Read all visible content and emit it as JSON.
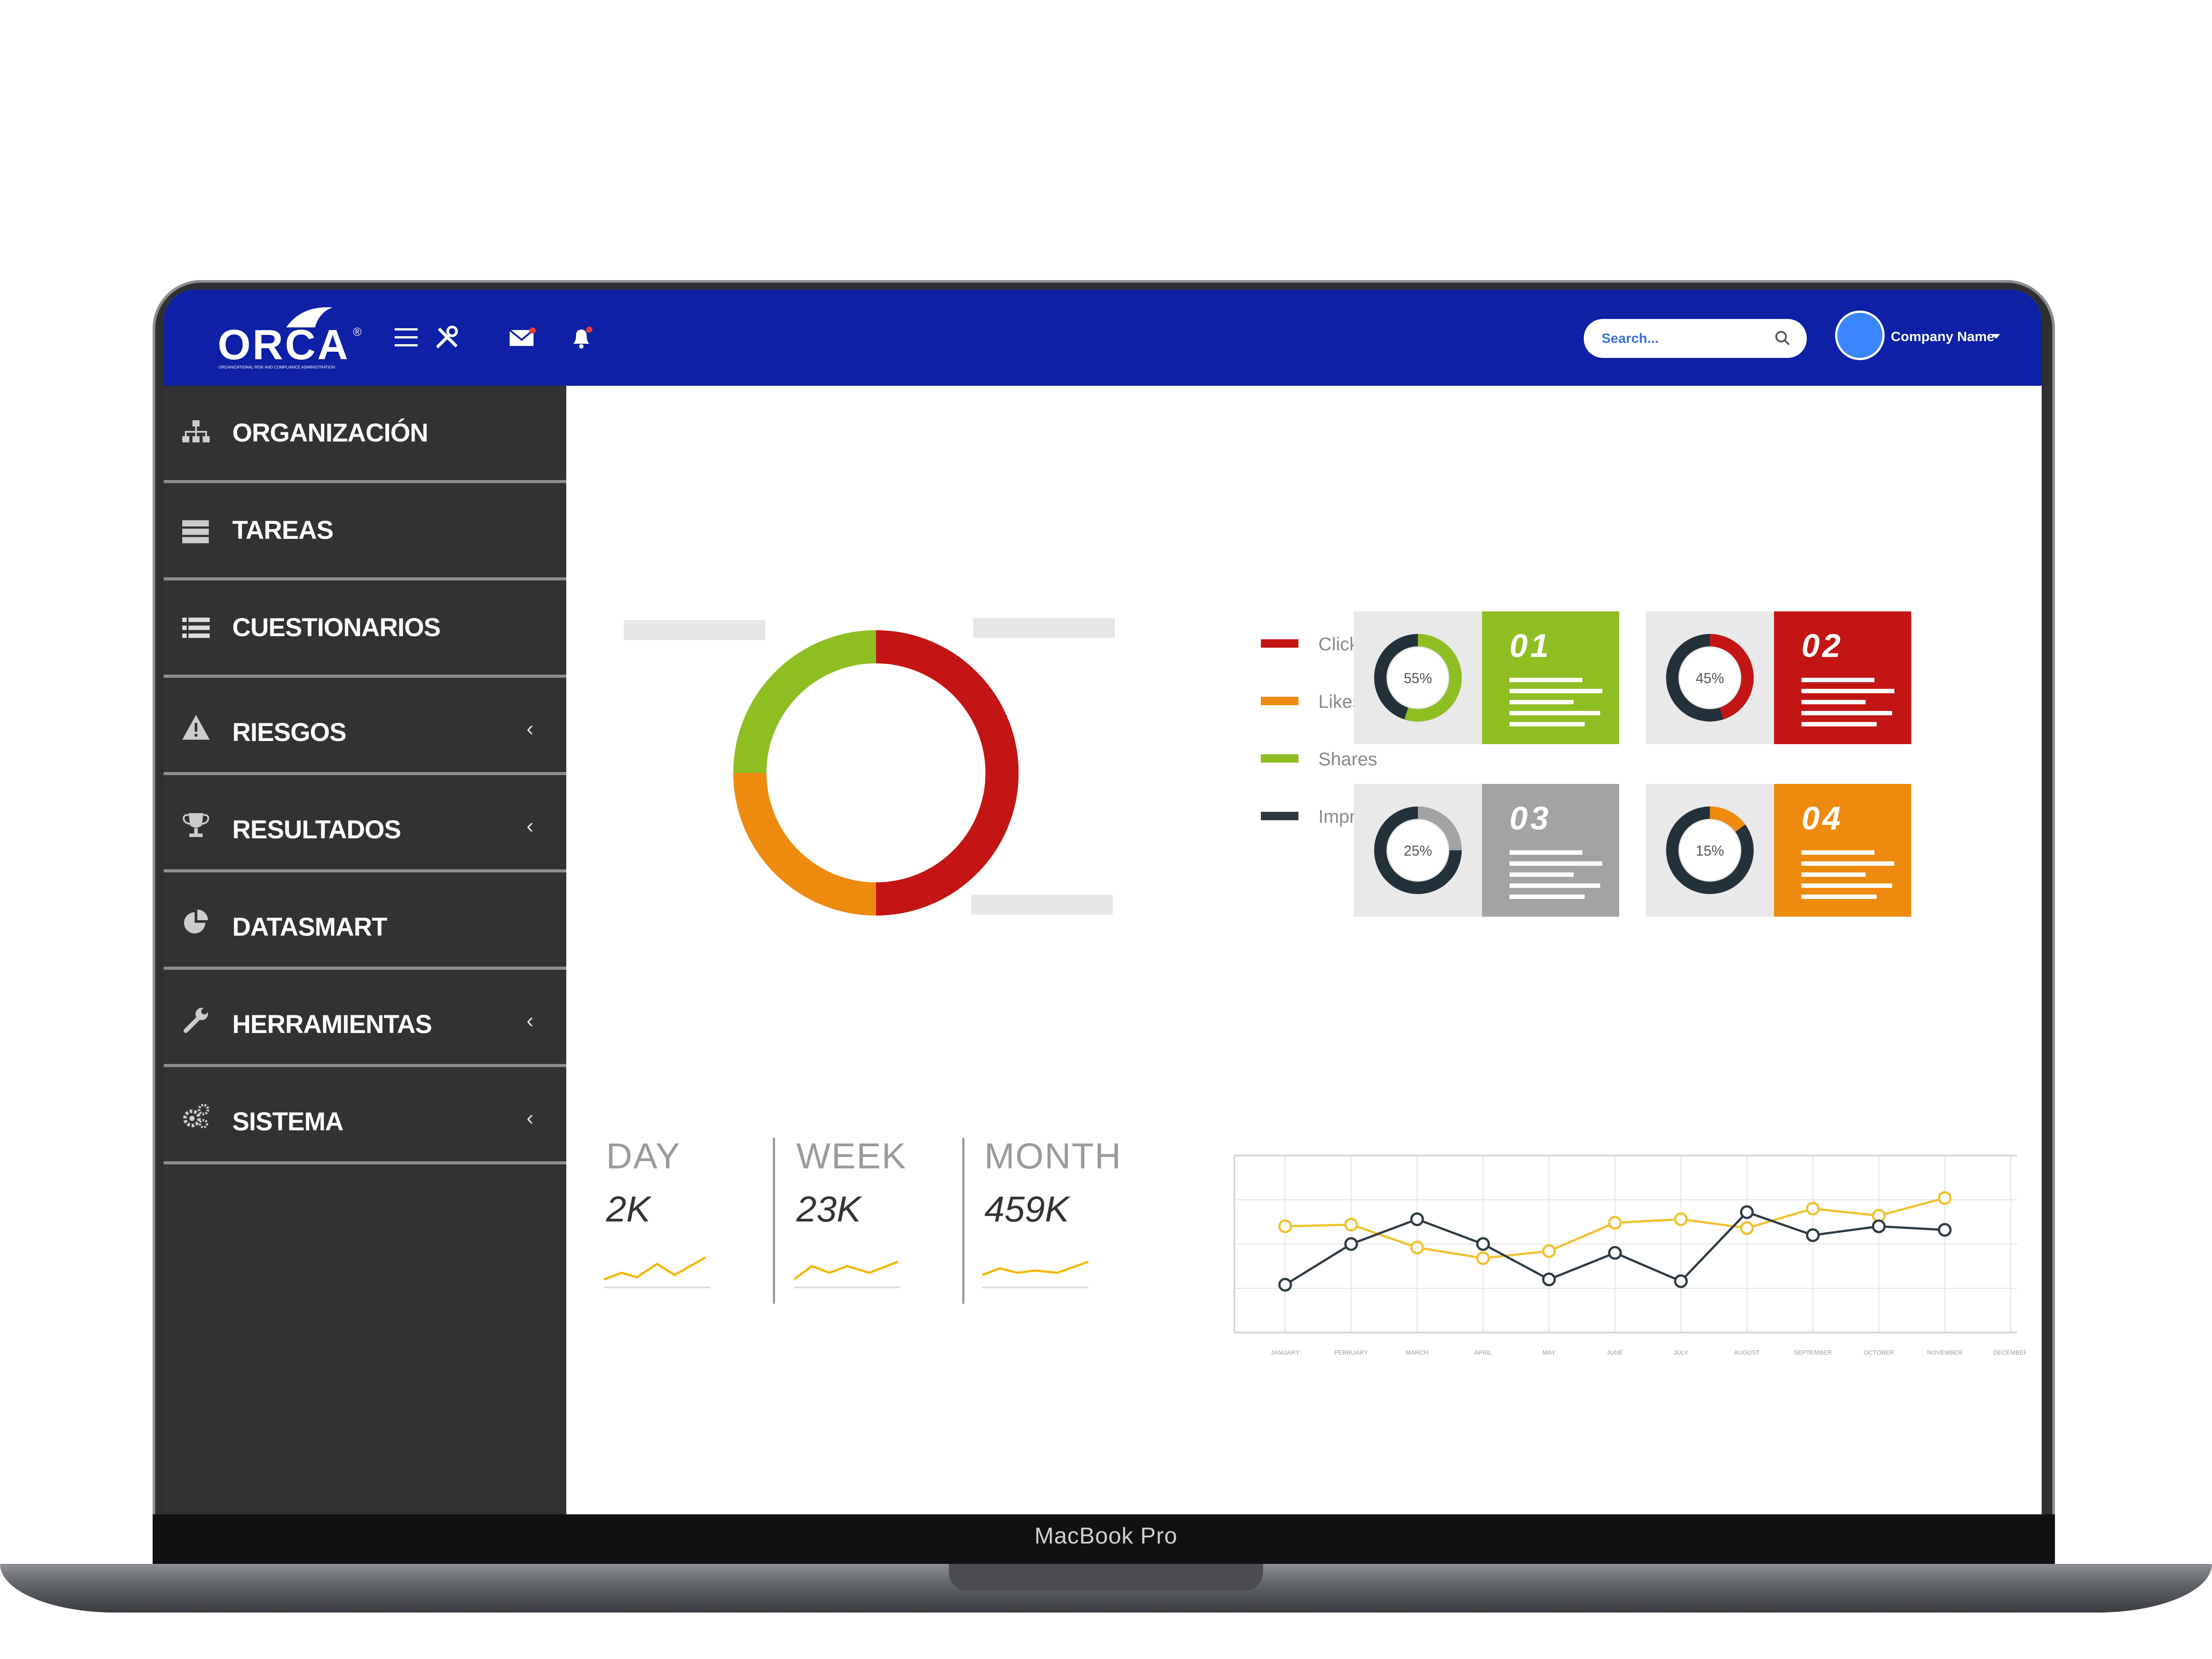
{
  "device": {
    "label": "MacBook Pro"
  },
  "header": {
    "logo_text": "ORCA",
    "logo_registered": "®",
    "logo_subtitle": "ORGANIZATIONAL RISK AND COMPLIANCE ADMINISTRATION",
    "search_placeholder": "Search...",
    "company_name": "Company Name",
    "colors": {
      "bar": "#0d20a6",
      "avatar": "#3a86ff"
    }
  },
  "sidebar": {
    "items": [
      {
        "label": "ORGANIZACIÓN",
        "icon": "sitemap-icon",
        "has_submenu": false
      },
      {
        "label": "TAREAS",
        "icon": "server-icon",
        "has_submenu": false
      },
      {
        "label": "CUESTIONARIOS",
        "icon": "list-icon",
        "has_submenu": false
      },
      {
        "label": "RIESGOS",
        "icon": "warning-icon",
        "has_submenu": true
      },
      {
        "label": "RESULTADOS",
        "icon": "trophy-icon",
        "has_submenu": true
      },
      {
        "label": "DATASMART",
        "icon": "pie-chart-icon",
        "has_submenu": false
      },
      {
        "label": "HERRAMIENTAS",
        "icon": "wrench-icon",
        "has_submenu": true
      },
      {
        "label": "SISTEMA",
        "icon": "gears-icon",
        "has_submenu": true
      }
    ],
    "chevron": "‹"
  },
  "legend": {
    "items": [
      {
        "label": "Clicks",
        "color": "#c41515"
      },
      {
        "label": "Likes",
        "color": "#ee8a0e"
      },
      {
        "label": "Shares",
        "color": "#8fbe23"
      },
      {
        "label": "Impressions",
        "color": "#2d3a42"
      }
    ]
  },
  "cards": [
    {
      "number": "01",
      "percent": "55%",
      "value": 55,
      "color": "#8fbe23"
    },
    {
      "number": "02",
      "percent": "45%",
      "value": 45,
      "color": "#c41515"
    },
    {
      "number": "03",
      "percent": "25%",
      "value": 25,
      "color": "#a3a3a3"
    },
    {
      "number": "04",
      "percent": "15%",
      "value": 15,
      "color": "#ee8a0e"
    }
  ],
  "stats": [
    {
      "label": "DAY",
      "value": "2K"
    },
    {
      "label": "WEEK",
      "value": "23K"
    },
    {
      "label": "MONTH",
      "value": "459K"
    }
  ],
  "chart_data": [
    {
      "type": "pie",
      "categories": [
        "Clicks",
        "Likes",
        "Shares",
        "Impressions"
      ],
      "values": [
        50,
        25,
        25,
        0
      ],
      "colors": [
        "#c41515",
        "#ee8a0e",
        "#8fbe23",
        "#2d3a42"
      ]
    },
    {
      "type": "line",
      "categories": [
        "JANUARY",
        "FEBRUARY",
        "MARCH",
        "APRIL",
        "MAY",
        "JUNE",
        "JULY",
        "AUGUST",
        "SEPTEMBER",
        "OCTOBER",
        "NOVEMBER",
        "DECEMBER"
      ],
      "series": [
        {
          "color": "#f2c12e",
          "values": [
            6.0,
            6.1,
            4.8,
            4.2,
            4.6,
            6.2,
            6.4,
            5.9,
            7.0,
            6.6,
            7.6,
            null
          ]
        },
        {
          "color": "#2d3a42",
          "values": [
            2.7,
            5.0,
            6.4,
            5.0,
            3.0,
            4.5,
            2.9,
            6.8,
            5.5,
            6.0,
            5.8,
            null
          ]
        }
      ],
      "ylim": [
        0,
        10
      ],
      "grid": true
    }
  ]
}
